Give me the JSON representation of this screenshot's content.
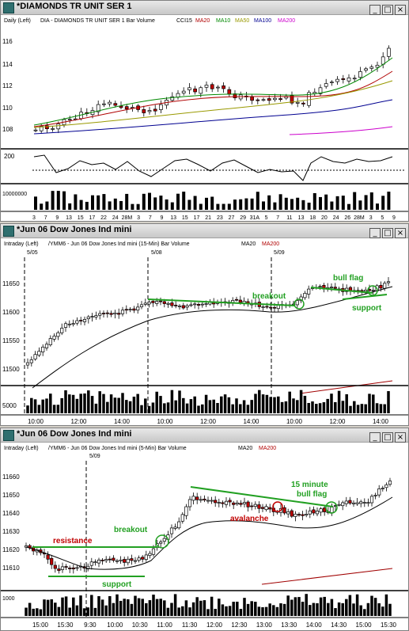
{
  "windows": [
    {
      "title": "*DIAMONDS TR UNIT SER 1",
      "legend": [
        {
          "text": "Daily  (Left)",
          "color": "#000000"
        },
        {
          "text": "DIA - DIAMONDS TR UNIT SER 1  Bar  Volume",
          "color": "#000000"
        },
        {
          "text": "CCI15",
          "color": "#000000"
        },
        {
          "text": "MA20",
          "color": "#b00000"
        },
        {
          "text": "MA10",
          "color": "#008800"
        },
        {
          "text": "MA50",
          "color": "#999900"
        },
        {
          "text": "MA100",
          "color": "#000090"
        },
        {
          "text": "MA200",
          "color": "#cc00cc"
        }
      ],
      "price_axis": [
        "116",
        "114",
        "112",
        "110",
        "108"
      ],
      "cci_axis": [
        "200"
      ],
      "volume_axis": [
        "10000000"
      ],
      "x_ticks": [
        "3",
        "7",
        "9",
        "13",
        "15",
        "17",
        "22",
        "24",
        "28M",
        "3",
        "7",
        "9",
        "13",
        "15",
        "17",
        "21",
        "23",
        "27",
        "29",
        "31A",
        "5",
        "7",
        "11",
        "13",
        "18",
        "20",
        "24",
        "26",
        "28M",
        "3",
        "5",
        "9"
      ],
      "annotations": []
    },
    {
      "title": "*Jun 06  Dow Jones Ind mini",
      "legend": [
        {
          "text": "Intraday  (Left)",
          "color": "#000000"
        },
        {
          "text": "/YMM6 - Jun 06  Dow Jones Ind mini  (15-Min)  Bar  Volume",
          "color": "#000000"
        },
        {
          "text": "MA20",
          "color": "#000000"
        },
        {
          "text": "MA200",
          "color": "#b00000"
        }
      ],
      "session_labels": [
        "5/05",
        "5/08",
        "5/09"
      ],
      "price_axis": [
        "11650",
        "11600",
        "11550",
        "11500"
      ],
      "volume_axis": [
        "5000"
      ],
      "x_ticks": [
        "10:00",
        "12:00",
        "14:00",
        "10:00",
        "12:00",
        "14:00",
        "10:00",
        "12:00",
        "14:00"
      ],
      "annotations": [
        "bull flag",
        "breakout",
        "support"
      ]
    },
    {
      "title": "*Jun 06  Dow Jones Ind mini",
      "legend": [
        {
          "text": "Intraday  (Left)",
          "color": "#000000"
        },
        {
          "text": "/YMM6 - Jun 06  Dow Jones Ind mini  (5-Min)  Bar  Volume",
          "color": "#000000"
        },
        {
          "text": "MA20",
          "color": "#000000"
        },
        {
          "text": "MA200",
          "color": "#b00000"
        }
      ],
      "session_labels": [
        "5/09"
      ],
      "price_axis": [
        "11660",
        "11650",
        "11640",
        "11630",
        "11620",
        "11610"
      ],
      "volume_axis": [
        "1000"
      ],
      "x_ticks": [
        "15:00",
        "15:30",
        "9:30",
        "10:00",
        "10:30",
        "11:00",
        "11:30",
        "12:00",
        "12:30",
        "13:00",
        "13:30",
        "14:00",
        "14:30",
        "15:00",
        "15:30"
      ],
      "annotations": [
        "resistance",
        "support",
        "breakout",
        "avalanche",
        "15 minute",
        "bull flag"
      ]
    }
  ],
  "colors": {
    "up": "#ffffff",
    "down": "#c00000",
    "line_green": "#22a022",
    "ma_black": "#000000",
    "ma_red": "#a00000"
  }
}
